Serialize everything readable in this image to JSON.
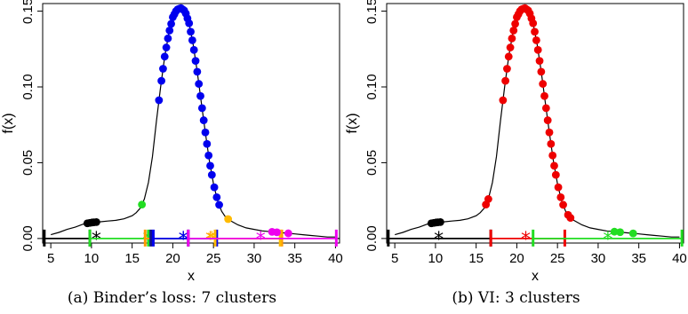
{
  "chart_data": [
    {
      "type": "line",
      "caption": "(a) Binder’s loss: 7 clusters",
      "xlabel": "x",
      "ylabel": "f(x)",
      "xlim": [
        4,
        40.5
      ],
      "ylim": [
        -0.003,
        0.155
      ],
      "xticks": [
        5,
        10,
        15,
        20,
        25,
        30,
        35,
        40
      ],
      "yticks": [
        0.0,
        0.05,
        0.1,
        0.15
      ],
      "ytick_labels": [
        "0.00",
        "0.05",
        "0.10",
        "0.15"
      ],
      "density_curve": {
        "x": [
          5,
          6,
          7,
          8,
          9,
          9.5,
          10,
          10.5,
          11,
          12,
          13,
          14,
          15,
          15.5,
          16,
          16.5,
          17,
          17.5,
          18,
          18.5,
          19,
          19.5,
          20,
          20.5,
          21,
          21.5,
          22,
          22.5,
          23,
          23.5,
          24,
          24.5,
          25,
          25.5,
          26,
          26.5,
          27,
          28,
          29,
          30,
          31,
          32,
          33,
          34,
          35,
          36,
          37,
          38,
          39,
          40
        ],
        "y": [
          0.0025,
          0.004,
          0.006,
          0.0075,
          0.0095,
          0.01,
          0.0105,
          0.0108,
          0.011,
          0.0115,
          0.012,
          0.013,
          0.015,
          0.017,
          0.02,
          0.026,
          0.037,
          0.054,
          0.078,
          0.1,
          0.12,
          0.135,
          0.146,
          0.151,
          0.152,
          0.15,
          0.142,
          0.128,
          0.11,
          0.09,
          0.07,
          0.051,
          0.036,
          0.025,
          0.018,
          0.014,
          0.012,
          0.009,
          0.007,
          0.006,
          0.005,
          0.0045,
          0.004,
          0.0035,
          0.003,
          0.0025,
          0.002,
          0.0015,
          0.001,
          0.001
        ]
      },
      "clusters": [
        {
          "color": "#000000",
          "points": [
            9.5,
            9.8,
            10.1,
            10.3,
            10.6
          ],
          "interval": [
            4.2,
            9.8
          ],
          "center": 10.6
        },
        {
          "color": "#22dd22",
          "points": [
            16.2
          ],
          "interval": [
            9.8,
            17.0
          ],
          "center": 16.9
        },
        {
          "color": "#ff9900",
          "points": [],
          "interval": [
            16.6,
            33.4
          ],
          "center": 24.6
        },
        {
          "color": "#111188",
          "points": [],
          "interval": [
            17.3,
            21.9
          ],
          "center": 21.3
        },
        {
          "color": "#0000ee",
          "points": [
            18.3,
            18.6,
            18.8,
            19.0,
            19.2,
            19.4,
            19.6,
            19.8,
            20.0,
            20.2,
            20.4,
            20.6,
            20.8,
            21.0,
            21.2,
            21.4,
            21.6,
            21.8,
            22.0,
            22.2,
            22.4,
            22.6,
            22.8,
            23.0,
            23.2,
            23.4,
            23.6,
            23.8,
            24.0,
            24.2,
            24.4,
            24.6,
            24.8,
            25.1,
            25.4,
            25.7
          ],
          "interval": [
            17.6,
            25.4
          ],
          "center": 21.3
        },
        {
          "color": "#ffbb00",
          "points": [
            26.8
          ],
          "interval": [
            25.2,
            33.2
          ],
          "center": 24.8
        },
        {
          "color": "#ee00ee",
          "points": [
            32.2,
            32.8,
            34.2
          ],
          "interval": [
            21.9,
            40.1
          ],
          "center": 30.8
        }
      ]
    },
    {
      "type": "line",
      "caption": "(b) VI: 3 clusters",
      "xlabel": "x",
      "ylabel": "f(x)",
      "xlim": [
        4,
        40.5
      ],
      "ylim": [
        -0.003,
        0.155
      ],
      "xticks": [
        5,
        10,
        15,
        20,
        25,
        30,
        35,
        40
      ],
      "yticks": [
        0.0,
        0.05,
        0.1,
        0.15
      ],
      "ytick_labels": [
        "0.00",
        "0.05",
        "0.10",
        "0.15"
      ],
      "density_curve": {
        "x": [
          5,
          6,
          7,
          8,
          9,
          9.5,
          10,
          10.5,
          11,
          12,
          13,
          14,
          15,
          15.5,
          16,
          16.5,
          17,
          17.5,
          18,
          18.5,
          19,
          19.5,
          20,
          20.5,
          21,
          21.5,
          22,
          22.5,
          23,
          23.5,
          24,
          24.5,
          25,
          25.5,
          26,
          26.5,
          27,
          28,
          29,
          30,
          31,
          32,
          33,
          34,
          35,
          36,
          37,
          38,
          39,
          40
        ],
        "y": [
          0.0025,
          0.004,
          0.006,
          0.0075,
          0.0095,
          0.01,
          0.0105,
          0.0108,
          0.011,
          0.0115,
          0.012,
          0.013,
          0.015,
          0.017,
          0.02,
          0.026,
          0.037,
          0.054,
          0.078,
          0.1,
          0.12,
          0.135,
          0.146,
          0.151,
          0.152,
          0.15,
          0.142,
          0.128,
          0.11,
          0.09,
          0.07,
          0.051,
          0.036,
          0.025,
          0.018,
          0.014,
          0.012,
          0.009,
          0.007,
          0.006,
          0.005,
          0.0045,
          0.004,
          0.0035,
          0.003,
          0.0025,
          0.002,
          0.0015,
          0.001,
          0.001
        ]
      },
      "clusters": [
        {
          "color": "#000000",
          "points": [
            9.5,
            9.8,
            10.1,
            10.3,
            10.6
          ],
          "interval": [
            4.2,
            16.8
          ],
          "center": 10.4
        },
        {
          "color": "#ee0000",
          "points": [
            16.2,
            16.5,
            18.3,
            18.6,
            18.8,
            19.0,
            19.2,
            19.4,
            19.6,
            19.8,
            20.0,
            20.2,
            20.4,
            20.6,
            20.8,
            21.0,
            21.2,
            21.4,
            21.6,
            21.8,
            22.0,
            22.2,
            22.4,
            22.6,
            22.8,
            23.0,
            23.2,
            23.4,
            23.6,
            23.8,
            24.0,
            24.2,
            24.4,
            24.6,
            24.8,
            25.1,
            25.4,
            25.7,
            26.3,
            26.6
          ],
          "interval": [
            16.8,
            25.9
          ],
          "center": 21.1
        },
        {
          "color": "#22dd22",
          "points": [
            32.0,
            32.7,
            34.3
          ],
          "interval": [
            22.0,
            40.3
          ],
          "center": 31.2
        }
      ]
    }
  ]
}
